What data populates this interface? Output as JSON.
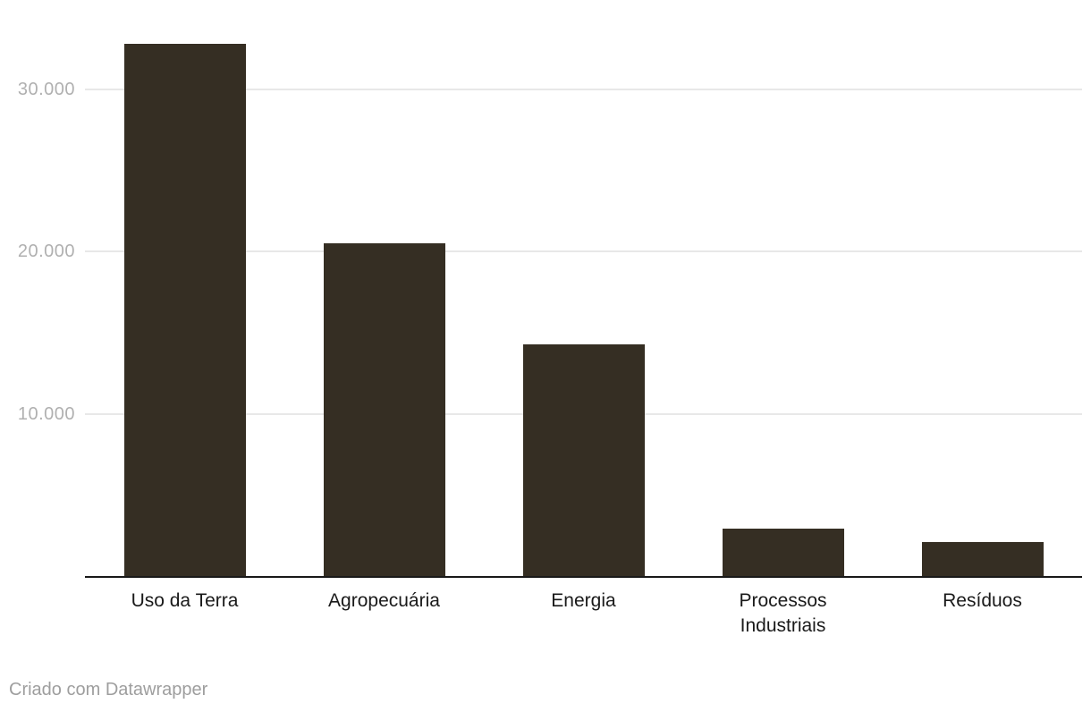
{
  "chart_data": {
    "type": "bar",
    "categories": [
      "Uso da Terra",
      "Agropecuária",
      "Energia",
      "Processos Industriais",
      "Resíduos"
    ],
    "values": [
      32800,
      20500,
      14300,
      2900,
      2100
    ],
    "title": "",
    "xlabel": "",
    "ylabel": "",
    "ylim": [
      0,
      35500
    ],
    "yticks": [
      10000,
      20000,
      30000
    ],
    "ytick_labels": [
      "10.000",
      "20.000",
      "30.000"
    ],
    "grid": true,
    "legend": "none",
    "bar_color": "#352e23"
  },
  "footer": {
    "credit": "Criado com Datawrapper"
  },
  "colors": {
    "background": "#ffffff",
    "bar": "#352e23",
    "gridline": "#e8e8e8",
    "axis_line": "#191919",
    "tick_label": "#b0b0b0",
    "category_label": "#1a1a1a",
    "footer_text": "#9e9e9e"
  }
}
